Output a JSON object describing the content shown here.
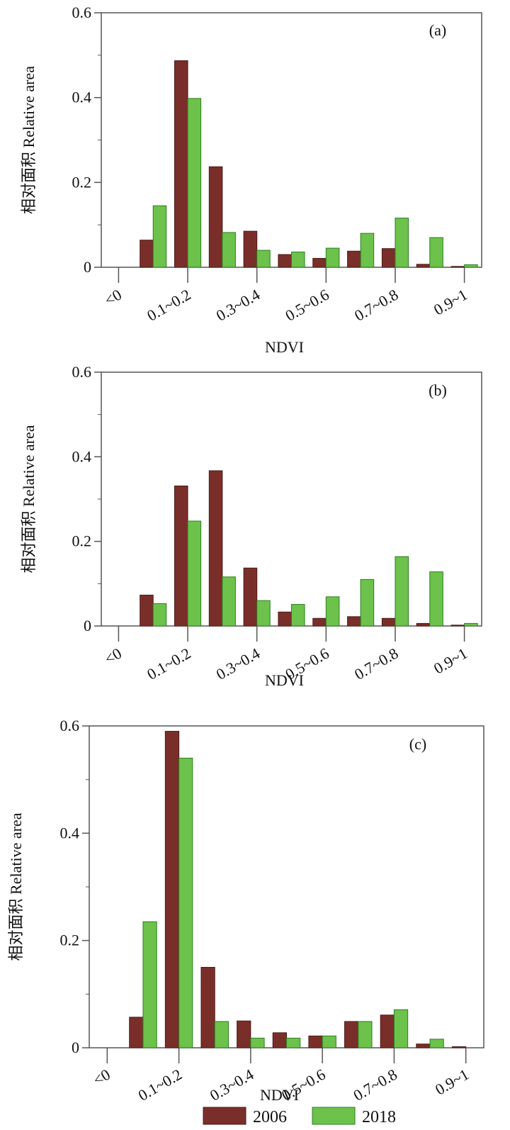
{
  "chart_data": [
    {
      "type": "bar",
      "panel_label": "(a)",
      "xlabel": "NDVI",
      "ylabel": "相对面积 Relative area",
      "ylim": [
        0,
        0.6
      ],
      "y_ticks": [
        "0",
        "0.2",
        "0.4",
        "0.6"
      ],
      "x_tick_labels": [
        "<0",
        "0.1~0.2",
        "0.3~0.4",
        "0.5~0.6",
        "0.7~0.8",
        "0.9~1"
      ],
      "categories": [
        "<0",
        "0~0.1",
        "0.1~0.2",
        "0.2~0.3",
        "0.3~0.4",
        "0.4~0.5",
        "0.5~0.6",
        "0.6~0.7",
        "0.7~0.8",
        "0.8~0.9",
        "0.9~1"
      ],
      "series": [
        {
          "name": "2006",
          "values": [
            0,
            0.064,
            0.487,
            0.237,
            0.085,
            0.03,
            0.021,
            0.038,
            0.044,
            0.007,
            0.002
          ]
        },
        {
          "name": "2018",
          "values": [
            0,
            0.145,
            0.398,
            0.082,
            0.04,
            0.036,
            0.045,
            0.08,
            0.116,
            0.07,
            0.006
          ]
        }
      ]
    },
    {
      "type": "bar",
      "panel_label": "(b)",
      "xlabel": "NDVI",
      "ylabel": "相对面积 Relative area",
      "ylim": [
        0,
        0.6
      ],
      "y_ticks": [
        "0",
        "0.2",
        "0.4",
        "0.6"
      ],
      "x_tick_labels": [
        "<0",
        "0.1~0.2",
        "0.3~0.4",
        "0.5~0.6",
        "0.7~0.8",
        "0.9~1"
      ],
      "categories": [
        "<0",
        "0~0.1",
        "0.1~0.2",
        "0.2~0.3",
        "0.3~0.4",
        "0.4~0.5",
        "0.5~0.6",
        "0.6~0.7",
        "0.7~0.8",
        "0.8~0.9",
        "0.9~1"
      ],
      "series": [
        {
          "name": "2006",
          "values": [
            0,
            0.073,
            0.331,
            0.367,
            0.137,
            0.033,
            0.018,
            0.022,
            0.018,
            0.006,
            0.002
          ]
        },
        {
          "name": "2018",
          "values": [
            0,
            0.053,
            0.248,
            0.116,
            0.06,
            0.051,
            0.069,
            0.11,
            0.164,
            0.128,
            0.006
          ]
        }
      ]
    },
    {
      "type": "bar",
      "panel_label": "(c)",
      "xlabel": "NDVI",
      "ylabel": "相对面积 Relative area",
      "ylim": [
        0,
        0.6
      ],
      "y_ticks": [
        "0",
        "0.2",
        "0.4",
        "0.6"
      ],
      "x_tick_labels": [
        "<0",
        "0.1~0.2",
        "0.3~0.4",
        "0.5~0.6",
        "0.7~0.8",
        "0.9~1"
      ],
      "categories": [
        "<0",
        "0~0.1",
        "0.1~0.2",
        "0.2~0.3",
        "0.3~0.4",
        "0.4~0.5",
        "0.5~0.6",
        "0.6~0.7",
        "0.7~0.8",
        "0.8~0.9",
        "0.9~1"
      ],
      "series": [
        {
          "name": "2006",
          "values": [
            0,
            0.057,
            0.59,
            0.15,
            0.05,
            0.028,
            0.022,
            0.049,
            0.061,
            0.007,
            0.002
          ]
        },
        {
          "name": "2018",
          "values": [
            0,
            0.235,
            0.54,
            0.049,
            0.018,
            0.018,
            0.022,
            0.049,
            0.071,
            0.016,
            0
          ]
        }
      ]
    }
  ],
  "legend": [
    {
      "label": "2006",
      "color": "#7a2e2a"
    },
    {
      "label": "2018",
      "color": "#6cc24a"
    }
  ],
  "colors": {
    "series_2006": "#7a2e2a",
    "series_2018": "#6cc24a",
    "axis": "#555555"
  }
}
